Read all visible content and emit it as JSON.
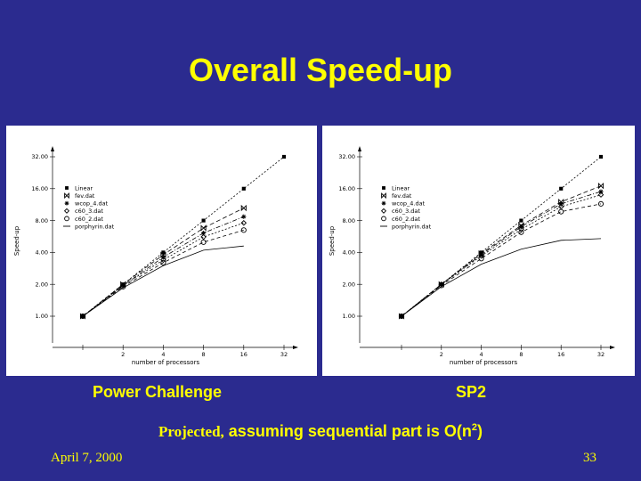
{
  "slide": {
    "title": "Overall Speed-up",
    "note_part1": "Projected,",
    "note_part2": " assuming sequential part is O(n",
    "note_sup": "2",
    "note_part3": ")",
    "date": "April 7, 2000",
    "page_number": "33"
  },
  "colors": {
    "background": "#2b2b8f",
    "title": "#ffff00",
    "panel": "#ffffff",
    "ink": "#000000"
  },
  "chart_data": [
    {
      "type": "line",
      "title": "Power Challenge",
      "xlabel": "number of processors",
      "ylabel": "Speed-up",
      "x_scale": "log2",
      "y_scale": "log2",
      "x": [
        1,
        2,
        4,
        8,
        16,
        32
      ],
      "x_tick_labels": [
        "",
        "2",
        "4",
        "8",
        "16",
        "32"
      ],
      "y_ticks": [
        1,
        2,
        4,
        8,
        16,
        32
      ],
      "y_tick_labels": [
        "1.00",
        "2.00",
        "4.00",
        "8.00",
        "16.00",
        "32.00"
      ],
      "xlim": [
        1,
        32
      ],
      "ylim": [
        1,
        32
      ],
      "legend_position": "top-left",
      "grid": false,
      "series": [
        {
          "name": "Linear",
          "marker": "square",
          "dash": "2,2",
          "x": [
            1,
            2,
            4,
            8,
            16,
            32
          ],
          "values": [
            1,
            2,
            4,
            8,
            16,
            32
          ]
        },
        {
          "name": "fev.dat",
          "marker": "bowtie",
          "dash": "5,3",
          "x": [
            1,
            2,
            4,
            8,
            16
          ],
          "values": [
            1,
            2,
            3.8,
            6.8,
            10.5
          ]
        },
        {
          "name": "wcop_4.dat",
          "marker": "asterisk",
          "dash": "5,2,1,2",
          "x": [
            1,
            2,
            4,
            8,
            16
          ],
          "values": [
            1,
            1.95,
            3.6,
            6.1,
            8.7
          ]
        },
        {
          "name": "c60_3.dat",
          "marker": "diamond",
          "dash": "2,2",
          "x": [
            1,
            2,
            4,
            8,
            16
          ],
          "values": [
            1,
            1.95,
            3.4,
            5.6,
            7.6
          ]
        },
        {
          "name": "c60_2.dat",
          "marker": "circle",
          "dash": "4,3",
          "x": [
            1,
            2,
            4,
            8,
            16
          ],
          "values": [
            1,
            1.9,
            3.2,
            5.0,
            6.5
          ]
        },
        {
          "name": "porphyrin.dat",
          "marker": "none",
          "dash": "",
          "x": [
            1,
            2,
            4,
            8,
            16
          ],
          "values": [
            1,
            1.85,
            3.0,
            4.2,
            4.6
          ]
        }
      ]
    },
    {
      "type": "line",
      "title": "SP2",
      "xlabel": "number of processors",
      "ylabel": "Speed-up",
      "x_scale": "log2",
      "y_scale": "log2",
      "x": [
        1,
        2,
        4,
        8,
        16,
        32
      ],
      "x_tick_labels": [
        "",
        "2",
        "4",
        "8",
        "16",
        "32"
      ],
      "y_ticks": [
        1,
        2,
        4,
        8,
        16,
        32
      ],
      "y_tick_labels": [
        "1.00",
        "2.00",
        "4.00",
        "8.00",
        "16.00",
        "32.00"
      ],
      "xlim": [
        1,
        32
      ],
      "ylim": [
        1,
        32
      ],
      "legend_position": "top-left",
      "grid": false,
      "series": [
        {
          "name": "Linear",
          "marker": "square",
          "dash": "2,2",
          "x": [
            1,
            2,
            4,
            8,
            16,
            32
          ],
          "values": [
            1,
            2,
            4,
            8,
            16,
            32
          ]
        },
        {
          "name": "fev.dat",
          "marker": "bowtie",
          "dash": "5,3",
          "x": [
            1,
            2,
            4,
            8,
            16,
            32
          ],
          "values": [
            1,
            2,
            3.9,
            7.2,
            12.0,
            17.0
          ]
        },
        {
          "name": "wcop_4.dat",
          "marker": "asterisk",
          "dash": "5,2,1,2",
          "x": [
            1,
            2,
            4,
            8,
            16,
            32
          ],
          "values": [
            1,
            2,
            3.8,
            7.0,
            11.5,
            15.0
          ]
        },
        {
          "name": "c60_3.dat",
          "marker": "diamond",
          "dash": "2,2",
          "x": [
            1,
            2,
            4,
            8,
            16,
            32
          ],
          "values": [
            1,
            2,
            3.7,
            6.6,
            10.8,
            14.0
          ]
        },
        {
          "name": "c60_2.dat",
          "marker": "circle",
          "dash": "4,3",
          "x": [
            1,
            2,
            4,
            8,
            16,
            32
          ],
          "values": [
            1,
            1.95,
            3.5,
            6.2,
            9.7,
            11.5
          ]
        },
        {
          "name": "porphyrin.dat",
          "marker": "none",
          "dash": "",
          "x": [
            1,
            2,
            4,
            8,
            16,
            32
          ],
          "values": [
            1,
            1.9,
            3.1,
            4.3,
            5.2,
            5.4
          ]
        }
      ]
    }
  ]
}
